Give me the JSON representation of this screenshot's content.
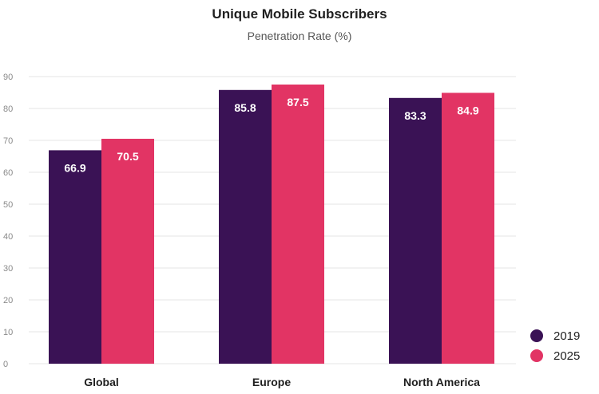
{
  "chart_data": {
    "type": "bar",
    "title": "Unique Mobile Subscribers",
    "subtitle": "Penetration Rate (%)",
    "categories": [
      "Global",
      "Europe",
      "North America"
    ],
    "series": [
      {
        "name": "2019",
        "values": [
          66.9,
          85.8,
          83.3
        ],
        "color": "#3a1255"
      },
      {
        "name": "2025",
        "values": [
          70.5,
          87.5,
          84.9
        ],
        "color": "#e23464"
      }
    ],
    "ylim": [
      0,
      90
    ],
    "yticks": [
      0,
      10,
      20,
      30,
      40,
      50,
      60,
      70,
      80,
      90
    ],
    "grid": true,
    "legend": "bottom-right",
    "gridColor": "#e6e6e6"
  }
}
